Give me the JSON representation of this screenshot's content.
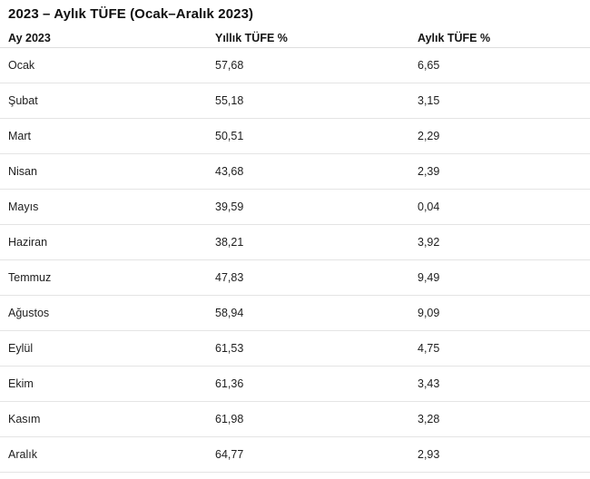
{
  "title": "2023 – Aylık TÜFE (Ocak–Aralık 2023)",
  "colors": {
    "background": "#ffffff",
    "text": "#1e1e1e",
    "divider": "#e4e4e4"
  },
  "table": {
    "columns": [
      "Ay 2023",
      "Yıllık TÜFE %",
      "Aylık TÜFE %"
    ],
    "rows": [
      {
        "month": "Ocak",
        "annual": "57,68",
        "monthly": "6,65"
      },
      {
        "month": "Şubat",
        "annual": "55,18",
        "monthly": "3,15"
      },
      {
        "month": "Mart",
        "annual": "50,51",
        "monthly": "2,29"
      },
      {
        "month": "Nisan",
        "annual": "43,68",
        "monthly": "2,39"
      },
      {
        "month": "Mayıs",
        "annual": "39,59",
        "monthly": "0,04"
      },
      {
        "month": "Haziran",
        "annual": "38,21",
        "monthly": "3,92"
      },
      {
        "month": "Temmuz",
        "annual": "47,83",
        "monthly": "9,49"
      },
      {
        "month": "Ağustos",
        "annual": "58,94",
        "monthly": "9,09"
      },
      {
        "month": "Eylül",
        "annual": "61,53",
        "monthly": "4,75"
      },
      {
        "month": "Ekim",
        "annual": "61,36",
        "monthly": "3,43"
      },
      {
        "month": "Kasım",
        "annual": "61,98",
        "monthly": "3,28"
      },
      {
        "month": "Aralık",
        "annual": "64,77",
        "monthly": "2,93"
      }
    ]
  },
  "chart_data": {
    "type": "table",
    "title": "2023 – Aylık TÜFE (Ocak–Aralık 2023)",
    "columns": [
      "Ay 2023",
      "Yıllık TÜFE %",
      "Aylık TÜFE %"
    ],
    "categories": [
      "Ocak",
      "Şubat",
      "Mart",
      "Nisan",
      "Mayıs",
      "Haziran",
      "Temmuz",
      "Ağustos",
      "Eylül",
      "Ekim",
      "Kasım",
      "Aralık"
    ],
    "series": [
      {
        "name": "Yıllık TÜFE %",
        "values": [
          57.68,
          55.18,
          50.51,
          43.68,
          39.59,
          38.21,
          47.83,
          58.94,
          61.53,
          61.36,
          61.98,
          64.77
        ]
      },
      {
        "name": "Aylık TÜFE %",
        "values": [
          6.65,
          3.15,
          2.29,
          2.39,
          0.04,
          3.92,
          9.49,
          9.09,
          4.75,
          3.43,
          3.28,
          2.93
        ]
      }
    ],
    "decimal_separator": ",",
    "grid": "horizontal-dividers",
    "legend_position": "none"
  }
}
